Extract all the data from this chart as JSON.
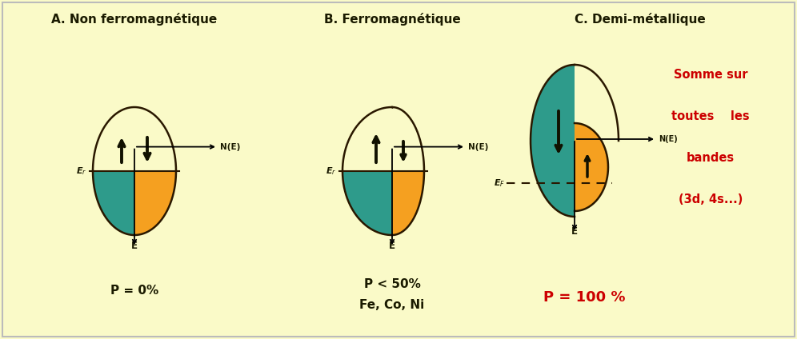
{
  "bg_color": "#FAFAC8",
  "title_color": "#1A1A00",
  "panel_titles": [
    "A. Non ferromagnétique",
    "B. Ferromagnétique",
    "C. Demi-métallique"
  ],
  "green_color": "#2E9B8B",
  "orange_color": "#F5A020",
  "outline_color": "#2A1800",
  "label_color": "#1A1A00",
  "red_color": "#CC0000",
  "p_label_A": "P = 0%",
  "p_label_B": "P < 50%",
  "extra_label_B": "Fe, Co, Ni",
  "p_label_C": "P = 100 %",
  "red_text_lines": [
    "Somme sur",
    "toutes    les",
    "bandes",
    "(3d, 4s...)"
  ]
}
